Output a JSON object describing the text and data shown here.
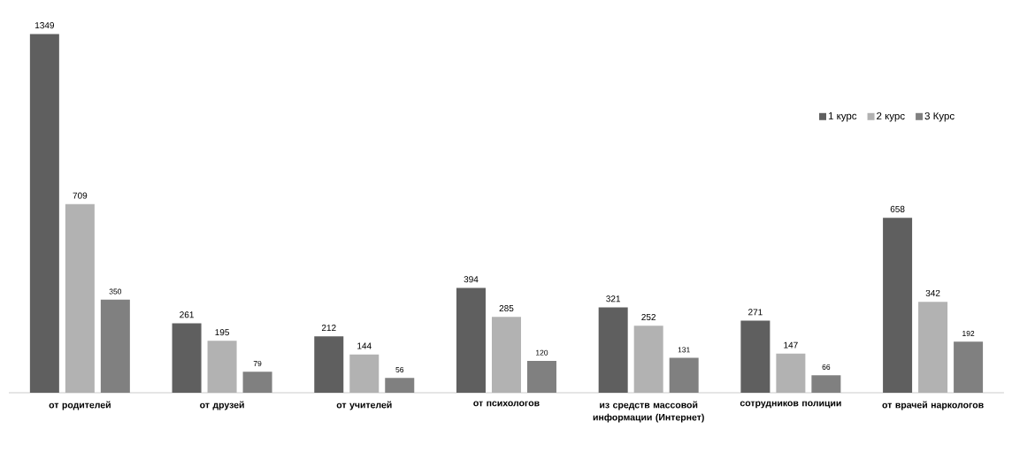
{
  "chart_data": {
    "type": "bar",
    "categories": [
      "от родителей",
      "от друзей",
      "от учителей",
      "от психологов",
      "из средств массовой информации (Интернет)",
      "сотрудников полиции",
      "от врачей наркологов"
    ],
    "series": [
      {
        "name": "1 курс",
        "color": "#5f5f5f",
        "values": [
          1349,
          261,
          212,
          394,
          321,
          271,
          658
        ]
      },
      {
        "name": "2 курс",
        "color": "#b2b2b2",
        "values": [
          709,
          195,
          144,
          285,
          252,
          147,
          342
        ]
      },
      {
        "name": "3 Курс",
        "color": "#808080",
        "values": [
          350,
          79,
          56,
          120,
          131,
          66,
          192
        ]
      }
    ],
    "data_labels": true,
    "legend": "top right"
  }
}
